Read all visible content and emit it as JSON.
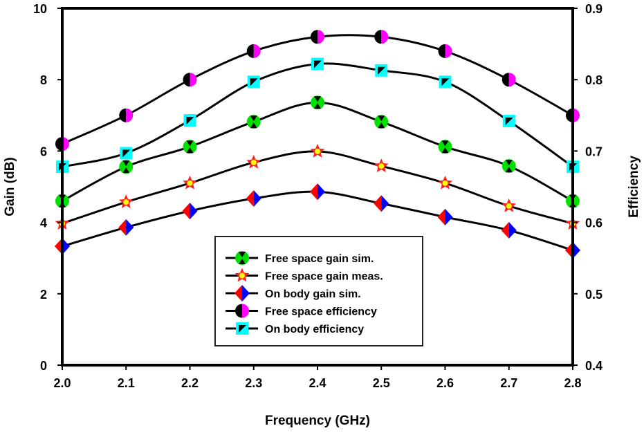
{
  "chart_data": {
    "type": "line",
    "title": "",
    "xlabel": "Frequency (GHz)",
    "ylabel": "Gain (dB)",
    "y2label": "Efficiency",
    "x": [
      2.0,
      2.1,
      2.2,
      2.3,
      2.4,
      2.5,
      2.6,
      2.7,
      2.8
    ],
    "xlim": [
      2.0,
      2.8
    ],
    "ylim": [
      0,
      10
    ],
    "y2lim": [
      0.4,
      0.9
    ],
    "xticks": [
      "2.0",
      "2.1",
      "2.2",
      "2.3",
      "2.4",
      "2.5",
      "2.6",
      "2.7",
      "2.8"
    ],
    "yticks": [
      "0",
      "2",
      "4",
      "6",
      "8",
      "10"
    ],
    "y2ticks": [
      "0.4",
      "0.5",
      "0.6",
      "0.7",
      "0.8",
      "0.9"
    ],
    "grid": false,
    "legend_position": "bottom-center",
    "series": [
      {
        "name": "Free space gain sim.",
        "axis": "left",
        "marker": "circle-hourglass",
        "colors": [
          "#00e000",
          "#000000"
        ],
        "values": [
          4.6,
          5.56,
          6.12,
          6.82,
          7.36,
          6.82,
          6.12,
          5.58,
          4.6
        ]
      },
      {
        "name": "Free space gain meas.",
        "axis": "left",
        "marker": "star",
        "colors": [
          "#ff2020",
          "#ffff00"
        ],
        "values": [
          3.97,
          4.57,
          5.1,
          5.68,
          5.99,
          5.58,
          5.1,
          4.46,
          3.97
        ]
      },
      {
        "name": "On body gain sim.",
        "axis": "left",
        "marker": "split-diamond",
        "colors": [
          "#ff0000",
          "#0000ff"
        ],
        "values": [
          3.33,
          3.86,
          4.32,
          4.67,
          4.86,
          4.53,
          4.15,
          3.78,
          3.22
        ]
      },
      {
        "name": "Free space efficiency",
        "axis": "right",
        "marker": "split-circle",
        "colors": [
          "#000000",
          "#ff00ff"
        ],
        "values": [
          0.71,
          0.75,
          0.8,
          0.84,
          0.86,
          0.86,
          0.84,
          0.8,
          0.75
        ]
      },
      {
        "name": "On body efficiency",
        "axis": "right",
        "marker": "square-triangle",
        "colors": [
          "#00ffff",
          "#000000"
        ],
        "values": [
          0.678,
          0.697,
          0.743,
          0.797,
          0.822,
          0.813,
          0.797,
          0.742,
          0.678
        ]
      }
    ]
  }
}
